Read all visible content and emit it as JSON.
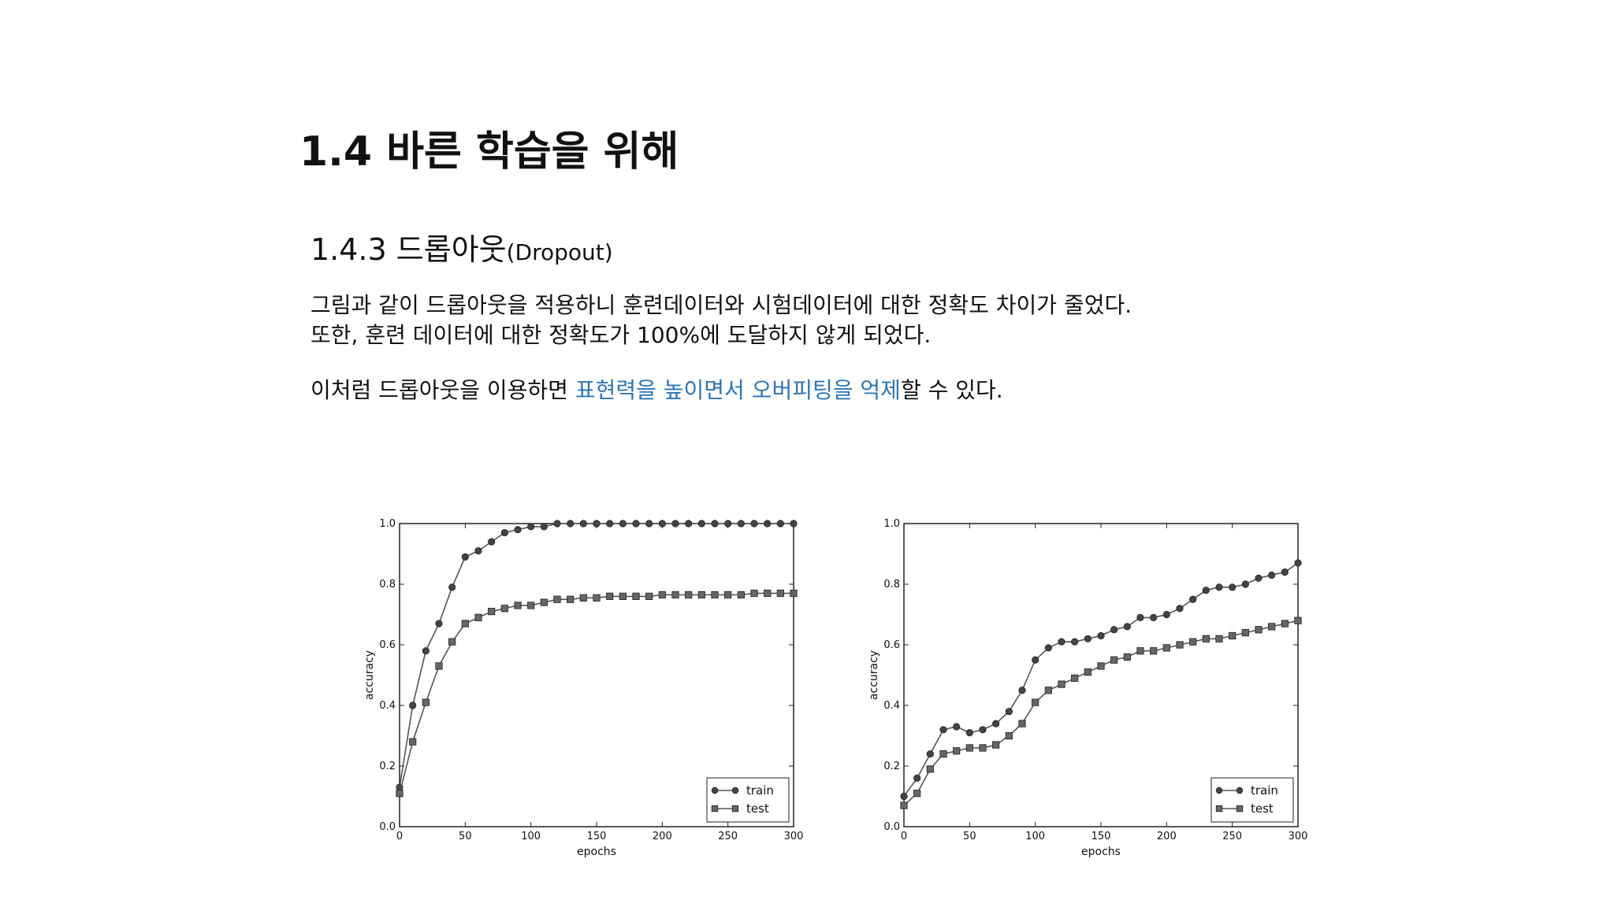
{
  "slide": {
    "title": "1.4 바른 학습을 위해",
    "subtitle_ko": "1.4.3 드롭아웃",
    "subtitle_en": "(Dropout)",
    "para1": "그림과 같이 드롭아웃을 적용하니 훈련데이터와 시험데이터에 대한 정확도 차이가 줄었다.",
    "para2": "또한, 훈련 데이터에 대한 정확도가 100%에 도달하지 않게 되었다.",
    "para3_pre": "이처럼 드롭아웃을 이용하면 ",
    "para3_highlight": "표현력을 높이면서 오버피팅을 억제",
    "para3_post": "할 수 있다.",
    "highlight_color": "#2e75b6"
  },
  "chart_data": [
    {
      "type": "line",
      "xlabel": "epochs",
      "ylabel": "accuracy",
      "xlim": [
        0,
        300
      ],
      "ylim": [
        0,
        1.0
      ],
      "xticks": [
        0,
        50,
        100,
        150,
        200,
        250,
        300
      ],
      "yticks": [
        0.0,
        0.2,
        0.4,
        0.6,
        0.8,
        1.0
      ],
      "legend_position": "bottom-right",
      "series": [
        {
          "name": "train",
          "marker": "circle",
          "x": [
            0,
            10,
            20,
            30,
            40,
            50,
            60,
            70,
            80,
            90,
            100,
            110,
            120,
            130,
            140,
            150,
            160,
            170,
            180,
            190,
            200,
            210,
            220,
            230,
            240,
            250,
            260,
            270,
            280,
            290,
            300
          ],
          "values": [
            0.13,
            0.4,
            0.58,
            0.67,
            0.79,
            0.89,
            0.91,
            0.94,
            0.97,
            0.98,
            0.99,
            0.99,
            1.0,
            1.0,
            1.0,
            1.0,
            1.0,
            1.0,
            1.0,
            1.0,
            1.0,
            1.0,
            1.0,
            1.0,
            1.0,
            1.0,
            1.0,
            1.0,
            1.0,
            1.0,
            1.0
          ]
        },
        {
          "name": "test",
          "marker": "square",
          "x": [
            0,
            10,
            20,
            30,
            40,
            50,
            60,
            70,
            80,
            90,
            100,
            110,
            120,
            130,
            140,
            150,
            160,
            170,
            180,
            190,
            200,
            210,
            220,
            230,
            240,
            250,
            260,
            270,
            280,
            290,
            300
          ],
          "values": [
            0.11,
            0.28,
            0.41,
            0.53,
            0.61,
            0.67,
            0.69,
            0.71,
            0.72,
            0.73,
            0.73,
            0.74,
            0.75,
            0.75,
            0.755,
            0.755,
            0.76,
            0.76,
            0.76,
            0.76,
            0.765,
            0.765,
            0.765,
            0.765,
            0.765,
            0.765,
            0.765,
            0.77,
            0.77,
            0.77,
            0.77
          ]
        }
      ]
    },
    {
      "type": "line",
      "xlabel": "epochs",
      "ylabel": "accuracy",
      "xlim": [
        0,
        300
      ],
      "ylim": [
        0,
        1.0
      ],
      "xticks": [
        0,
        50,
        100,
        150,
        200,
        250,
        300
      ],
      "yticks": [
        0.0,
        0.2,
        0.4,
        0.6,
        0.8,
        1.0
      ],
      "legend_position": "bottom-right",
      "series": [
        {
          "name": "train",
          "marker": "circle",
          "x": [
            0,
            10,
            20,
            30,
            40,
            50,
            60,
            70,
            80,
            90,
            100,
            110,
            120,
            130,
            140,
            150,
            160,
            170,
            180,
            190,
            200,
            210,
            220,
            230,
            240,
            250,
            260,
            270,
            280,
            290,
            300
          ],
          "values": [
            0.1,
            0.16,
            0.24,
            0.32,
            0.33,
            0.31,
            0.32,
            0.34,
            0.38,
            0.45,
            0.55,
            0.59,
            0.61,
            0.61,
            0.62,
            0.63,
            0.65,
            0.66,
            0.69,
            0.69,
            0.7,
            0.72,
            0.75,
            0.78,
            0.79,
            0.79,
            0.8,
            0.82,
            0.83,
            0.84,
            0.87
          ]
        },
        {
          "name": "test",
          "marker": "square",
          "x": [
            0,
            10,
            20,
            30,
            40,
            50,
            60,
            70,
            80,
            90,
            100,
            110,
            120,
            130,
            140,
            150,
            160,
            170,
            180,
            190,
            200,
            210,
            220,
            230,
            240,
            250,
            260,
            270,
            280,
            290,
            300
          ],
          "values": [
            0.07,
            0.11,
            0.19,
            0.24,
            0.25,
            0.26,
            0.26,
            0.27,
            0.3,
            0.34,
            0.41,
            0.45,
            0.47,
            0.49,
            0.51,
            0.53,
            0.55,
            0.56,
            0.58,
            0.58,
            0.59,
            0.6,
            0.61,
            0.62,
            0.62,
            0.63,
            0.64,
            0.65,
            0.66,
            0.67,
            0.68
          ]
        }
      ]
    }
  ]
}
